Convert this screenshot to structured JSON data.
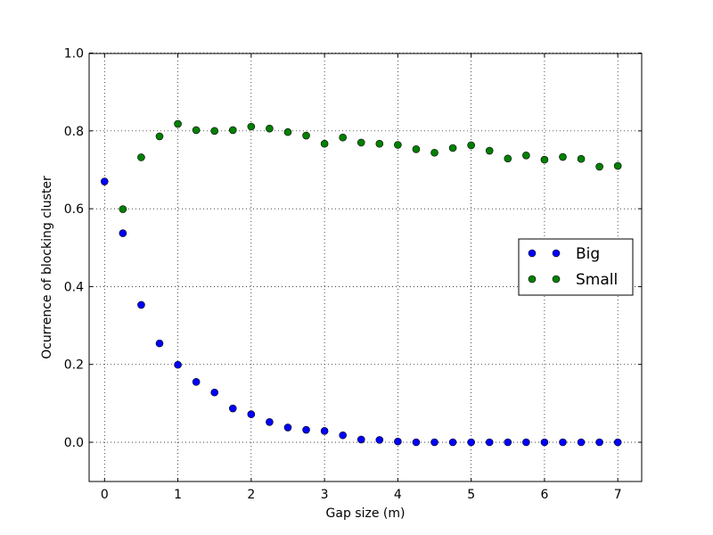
{
  "chart_data": {
    "type": "scatter",
    "title": "",
    "xlabel": "Gap size (m)",
    "ylabel": "Ocurrence of blocking cluster",
    "xlim": [
      -0.2,
      7.3
    ],
    "ylim": [
      -0.1,
      1.0
    ],
    "xticks": [
      0,
      1,
      2,
      3,
      4,
      5,
      6,
      7
    ],
    "xtick_labels": [
      "0",
      "1",
      "2",
      "3",
      "4",
      "5",
      "6",
      "7"
    ],
    "yticks": [
      0.0,
      0.2,
      0.4,
      0.6,
      0.8,
      1.0
    ],
    "ytick_labels": [
      "0.0",
      "0.2",
      "0.4",
      "0.6",
      "0.8",
      "1.0"
    ],
    "grid": true,
    "legend_position": "center-right",
    "x": [
      0,
      0.25,
      0.5,
      0.75,
      1.0,
      1.25,
      1.5,
      1.75,
      2.0,
      2.25,
      2.5,
      2.75,
      3.0,
      3.25,
      3.5,
      3.75,
      4.0,
      4.25,
      4.5,
      4.75,
      5.0,
      5.25,
      5.5,
      5.75,
      6.0,
      6.25,
      6.5,
      6.75,
      7.0
    ],
    "series": [
      {
        "name": "Big",
        "color": "#0000ff",
        "values": [
          0.67,
          0.537,
          0.353,
          0.254,
          0.199,
          0.155,
          0.128,
          0.087,
          0.072,
          0.052,
          0.038,
          0.032,
          0.029,
          0.018,
          0.007,
          0.006,
          0.002,
          0.0,
          0.0,
          0.0,
          0.0,
          0.0,
          0.0,
          0.0,
          0.0,
          0.0,
          0.0,
          0.0,
          0.0
        ]
      },
      {
        "name": "Small",
        "color": "#008000",
        "values": [
          null,
          0.599,
          0.732,
          0.786,
          0.818,
          0.802,
          0.8,
          0.802,
          0.811,
          0.806,
          0.797,
          0.788,
          0.767,
          0.783,
          0.77,
          0.767,
          0.764,
          0.753,
          0.744,
          0.756,
          0.763,
          0.749,
          0.729,
          0.737,
          0.726,
          0.733,
          0.728,
          0.708,
          0.71
        ]
      }
    ]
  }
}
